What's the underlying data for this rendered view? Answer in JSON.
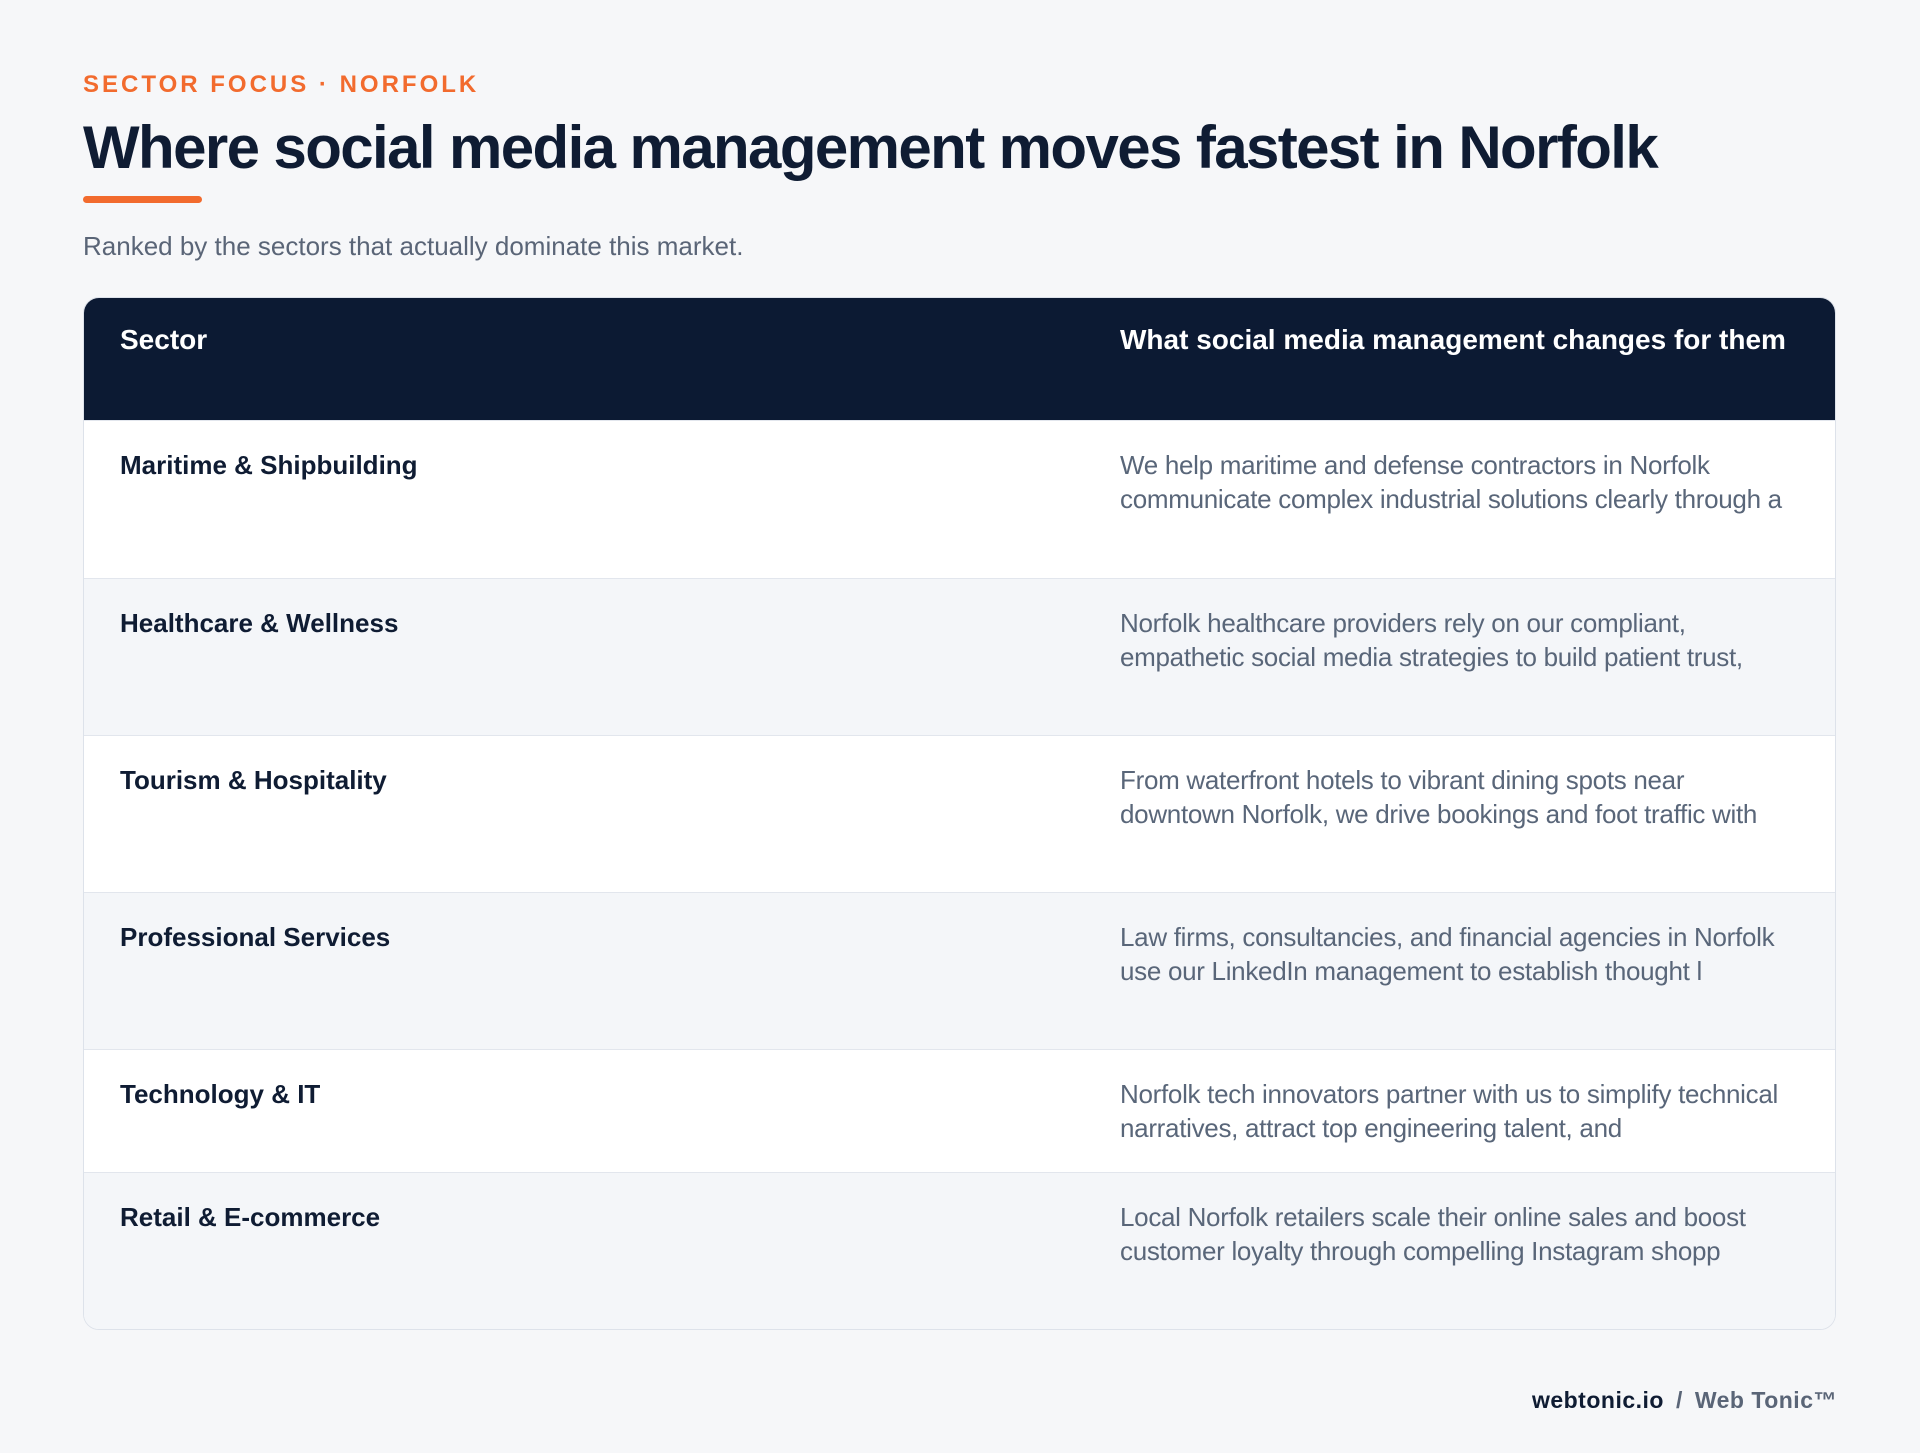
{
  "header": {
    "eyebrow": "SECTOR FOCUS · NORFOLK",
    "title": "Where social media management moves fastest in Norfolk",
    "subtitle": "Ranked by the sectors that actually dominate this market."
  },
  "table": {
    "columns": [
      "Sector",
      "What social media management changes for them"
    ],
    "rows": [
      {
        "sector": "Maritime & Shipbuilding",
        "change": "We help maritime and defense contractors in Norfolk communicate complex industrial solutions clearly through a"
      },
      {
        "sector": "Healthcare & Wellness",
        "change": "Norfolk healthcare providers rely on our compliant, empathetic social media strategies to build patient trust,"
      },
      {
        "sector": "Tourism & Hospitality",
        "change": "From waterfront hotels to vibrant dining spots near downtown Norfolk, we drive bookings and foot traffic with"
      },
      {
        "sector": "Professional Services",
        "change": "Law firms, consultancies, and financial agencies in Norfolk use our LinkedIn management to establish thought l"
      },
      {
        "sector": "Technology & IT",
        "change": "Norfolk tech innovators partner with us to simplify technical narratives, attract top engineering talent, and"
      },
      {
        "sector": "Retail & E-commerce",
        "change": "Local Norfolk retailers scale their online sales and boost customer loyalty through compelling Instagram shopp"
      }
    ]
  },
  "footer": {
    "domain": "webtonic.io",
    "separator": "/",
    "brand": "Web Tonic™"
  },
  "colors": {
    "accent": "#f26b2e",
    "navy": "#0c1a33",
    "muted_text": "#5a6577",
    "background": "#f6f7f9"
  }
}
